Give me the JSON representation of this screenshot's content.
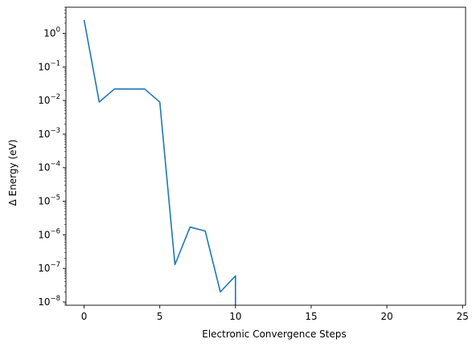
{
  "chart_data": {
    "type": "line",
    "xlabel": "Electronic Convergence Steps",
    "ylabel": "Δ Energy (eV)",
    "yscale": "log",
    "xlim": [
      -1.2,
      25.2
    ],
    "ylim": [
      8e-09,
      6
    ],
    "x_ticks": [
      0,
      5,
      10,
      15,
      20,
      25
    ],
    "y_ticks": [
      {
        "value": 1e-08,
        "exp": "−8"
      },
      {
        "value": 1e-07,
        "exp": "−7"
      },
      {
        "value": 1e-06,
        "exp": "−6"
      },
      {
        "value": 1e-05,
        "exp": "−5"
      },
      {
        "value": 0.0001,
        "exp": "−4"
      },
      {
        "value": 0.001,
        "exp": "−3"
      },
      {
        "value": 0.01,
        "exp": "−2"
      },
      {
        "value": 0.1,
        "exp": "−1"
      },
      {
        "value": 1,
        "exp": "0"
      }
    ],
    "y_tick_base": "10",
    "grid": false,
    "line_color": "#1f77b4",
    "series": [
      {
        "x": [
          0,
          1,
          2,
          3,
          4,
          5,
          6,
          7,
          8,
          9,
          10,
          10
        ],
        "y": [
          2.5,
          0.009,
          0.022,
          0.022,
          0.022,
          0.009,
          1.3e-07,
          1.7e-06,
          1.3e-06,
          2e-08,
          6e-08,
          1e-09
        ]
      }
    ]
  }
}
